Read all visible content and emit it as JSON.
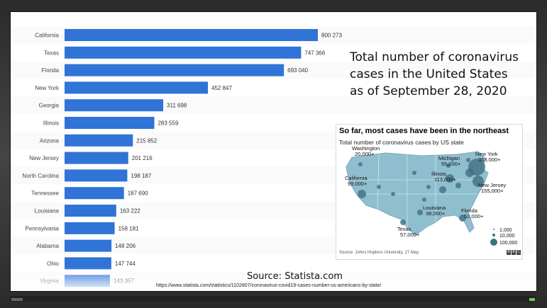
{
  "headline": {
    "line1": "Total number of coronavirus",
    "line2": "cases in the United States",
    "line3": "as of September 28, 2020"
  },
  "source": "Source: Statista.com",
  "url": "https://www.statista.com/statistics/1102807/coronavirus-covid19-cases-number-us-americans-by-state/",
  "inset": {
    "title": "So far, most cases have been in the northeast",
    "subtitle": "Total number of coronavirus cases by US state",
    "source": "Source: Johns Hopkins University, 27 May",
    "bbc": [
      "B",
      "B",
      "C"
    ],
    "labels": [
      {
        "name": "Washington",
        "value": "20,000+"
      },
      {
        "name": "Michigan",
        "value": "55,000+"
      },
      {
        "name": "New York",
        "value": "363,000+"
      },
      {
        "name": "Illinois",
        "value": "113,000+"
      },
      {
        "name": "New Jersey",
        "value": "155,000+"
      },
      {
        "name": "California",
        "value": "99,000+"
      },
      {
        "name": "Louisiana",
        "value": "38,000+"
      },
      {
        "name": "Florida",
        "value": "52,000+"
      },
      {
        "name": "Texas",
        "value": "57,000+"
      }
    ],
    "legend": [
      "1,000",
      "10,000",
      "100,000"
    ],
    "colors": {
      "land": "#8fbfcf",
      "bubble": "#3f6f80",
      "border": "#ffffff"
    }
  },
  "chart_data": {
    "type": "bar",
    "orientation": "horizontal",
    "categories": [
      "California",
      "Texas",
      "Florida",
      "New York",
      "Georgia",
      "Illinois",
      "Arizona",
      "New Jersey",
      "North Carolina",
      "Tennessee",
      "Louisiana",
      "Pennsylvania",
      "Alabama",
      "Ohio",
      "Virginia"
    ],
    "values": [
      800273,
      747366,
      693040,
      452847,
      311698,
      283559,
      215852,
      201216,
      198187,
      187690,
      163222,
      158181,
      148206,
      147744,
      143357
    ],
    "value_labels": [
      "800 273",
      "747 366",
      "693 040",
      "452 847",
      "311 698",
      "283 559",
      "215 852",
      "201 216",
      "198 187",
      "187 690",
      "163 222",
      "158 181",
      "148 206",
      "147 744",
      "143 357"
    ],
    "xlim": [
      0,
      800273
    ],
    "bar_color": "#2f74d6",
    "grid": false
  }
}
